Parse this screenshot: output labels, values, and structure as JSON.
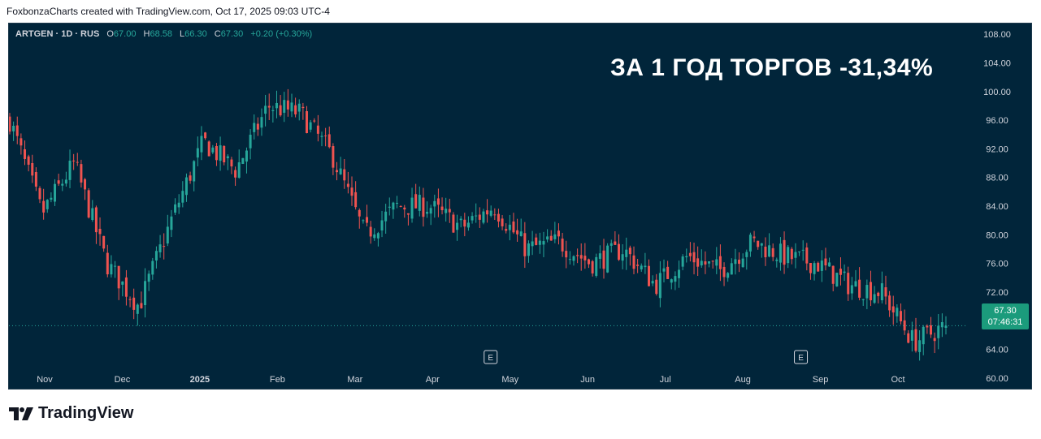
{
  "header": {
    "credit": "FoxbonzaCharts created with TradingView.com, Oct 17, 2025 09:03 UTC-4"
  },
  "legend": {
    "symbol": "ARTGEN · 1D · RUS",
    "open_label": "O",
    "open": "67.00",
    "high_label": "H",
    "high": "68.58",
    "low_label": "L",
    "low": "66.30",
    "close_label": "C",
    "close": "67.30",
    "change": "+0.20 (+0.30%)"
  },
  "overlay_title": "ЗА 1 ГОД ТОРГОВ -31,34%",
  "price_badge": {
    "price": "67.30",
    "countdown": "07:46:31"
  },
  "brand": {
    "name": "TradingView"
  },
  "colors": {
    "background": "#01253a",
    "up": "#26a69a",
    "down": "#ef5350",
    "text": "#d1d4dc",
    "badge": "#1b9b7c"
  },
  "chart_data": {
    "type": "candlestick",
    "yaxis": {
      "ticks": [
        "108.00",
        "104.00",
        "100.00",
        "96.00",
        "92.00",
        "88.00",
        "84.00",
        "80.00",
        "76.00",
        "72.00",
        "68.00",
        "64.00",
        "60.00"
      ],
      "range": [
        58.5,
        109.5
      ],
      "position": "right"
    },
    "xaxis": {
      "labels": [
        "Nov",
        "Dec",
        "2025",
        "Feb",
        "Mar",
        "Apr",
        "May",
        "Jun",
        "Jul",
        "Aug",
        "Sep",
        "Oct"
      ]
    },
    "current_price_line": 67.3,
    "events": [
      {
        "label": "E",
        "month": "May"
      },
      {
        "label": "E",
        "month": "Sep"
      }
    ],
    "close_path": [
      {
        "month": "Oct 2024",
        "close": 96
      },
      {
        "month": "Nov",
        "close": 83
      },
      {
        "month": "Nov",
        "close": 90
      },
      {
        "month": "Dec",
        "close": 76
      },
      {
        "month": "Dec",
        "close": 70
      },
      {
        "month": "2025",
        "close": 82
      },
      {
        "month": "2025",
        "close": 93
      },
      {
        "month": "Feb",
        "close": 89
      },
      {
        "month": "Mar",
        "close": 98
      },
      {
        "month": "Mar",
        "close": 97
      },
      {
        "month": "Apr",
        "close": 91
      },
      {
        "month": "Apr",
        "close": 80
      },
      {
        "month": "Apr",
        "close": 84
      },
      {
        "month": "May",
        "close": 84
      },
      {
        "month": "May",
        "close": 81
      },
      {
        "month": "May",
        "close": 84
      },
      {
        "month": "Jun",
        "close": 78
      },
      {
        "month": "Jun",
        "close": 79
      },
      {
        "month": "Jun",
        "close": 76
      },
      {
        "month": "Jul",
        "close": 78
      },
      {
        "month": "Jul",
        "close": 73
      },
      {
        "month": "Aug",
        "close": 77
      },
      {
        "month": "Aug",
        "close": 75
      },
      {
        "month": "Aug",
        "close": 79
      },
      {
        "month": "Sep",
        "close": 77
      },
      {
        "month": "Sep",
        "close": 76
      },
      {
        "month": "Sep",
        "close": 73
      },
      {
        "month": "Oct",
        "close": 72
      },
      {
        "month": "Oct",
        "close": 65
      },
      {
        "month": "Oct",
        "close": 67.3
      }
    ]
  }
}
